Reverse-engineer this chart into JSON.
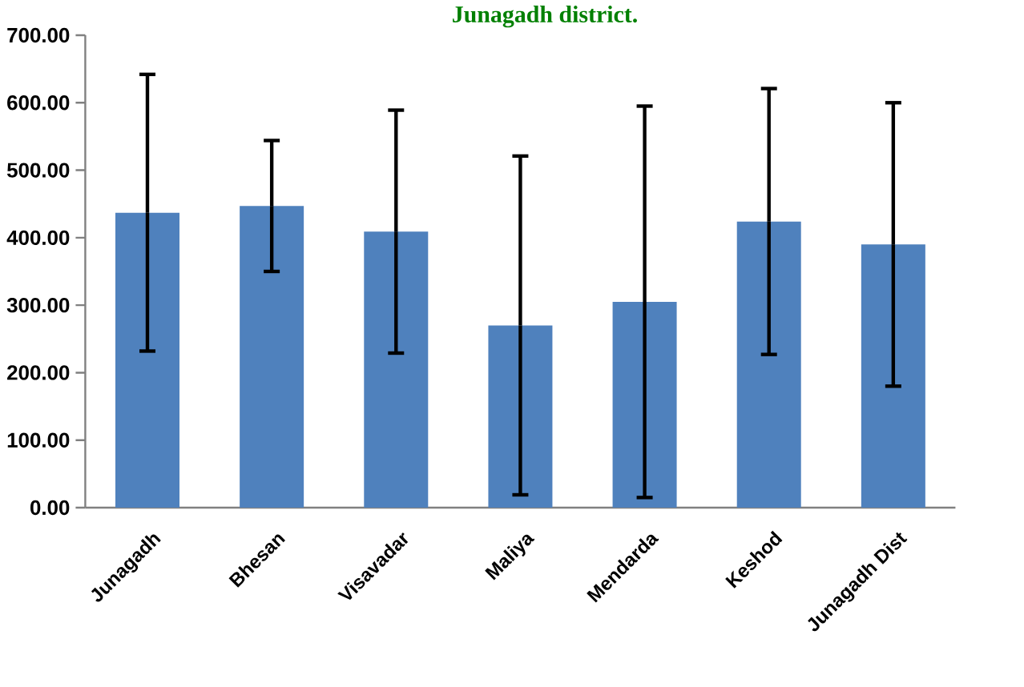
{
  "chart_data": {
    "type": "bar",
    "title": "Junagadh district.",
    "categories": [
      "Junagadh",
      "Bhesan",
      "Visavadar",
      "Maliya",
      "Mendarda",
      "Keshod",
      "Junagadh Dist"
    ],
    "values": [
      437,
      447,
      409,
      270,
      305,
      424,
      390
    ],
    "errors": [
      205,
      97,
      180,
      251,
      290,
      197,
      210
    ],
    "color": "#4f81bd",
    "ylim": [
      0,
      700
    ],
    "yticks": [
      {
        "value": 0,
        "label": "0.00"
      },
      {
        "value": 100,
        "label": "100.00"
      },
      {
        "value": 200,
        "label": "200.00"
      },
      {
        "value": 300,
        "label": "300.00"
      },
      {
        "value": 400,
        "label": "400.00"
      },
      {
        "value": 500,
        "label": "500.00"
      },
      {
        "value": 600,
        "label": "600.00"
      },
      {
        "value": 700,
        "label": "700.00"
      }
    ],
    "grid": false
  }
}
